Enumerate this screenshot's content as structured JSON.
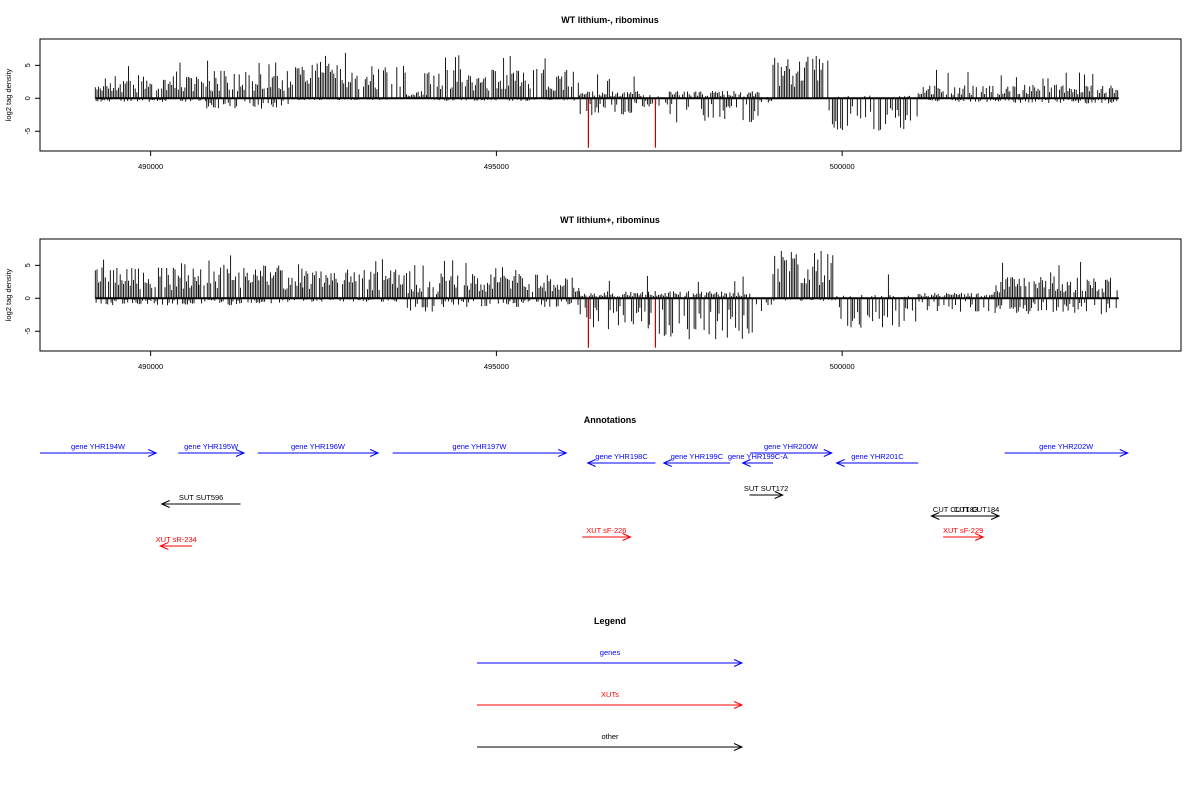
{
  "colors": {
    "gene": "#0000ff",
    "xut": "#ff0000",
    "other": "#000000",
    "spike": "#cc0000",
    "bars": "#000000"
  },
  "chart_data": [
    {
      "type": "bar",
      "title": "WT lithium-, ribominus",
      "ylabel": "log2 tag density",
      "xlim": [
        488400,
        504900
      ],
      "ylim": [
        -8,
        9
      ],
      "x_ticks": [
        490000,
        495000,
        500000
      ],
      "x_tick_labels": [
        "490000",
        "495000",
        "500000"
      ],
      "y_ticks": [
        5,
        0,
        -5
      ],
      "y_tick_labels": [
        "5",
        "0",
        "-5"
      ],
      "baseline_range": [
        489200,
        504000
      ],
      "segments": [
        {
          "range": [
            489200,
            490800
          ],
          "mean": 2.5,
          "neg": -0.4
        },
        {
          "range": [
            490800,
            492000
          ],
          "mean": 3.0,
          "neg": -1.2
        },
        {
          "range": [
            492000,
            493700
          ],
          "mean": 3.8,
          "neg": -0.2
        },
        {
          "range": [
            493700,
            494000
          ],
          "mean": 0.8,
          "neg": 0.0
        },
        {
          "range": [
            494000,
            496200
          ],
          "mean": 3.3,
          "neg": -0.3
        },
        {
          "range": [
            496200,
            497100
          ],
          "mean": 0.8,
          "neg": -2.0
        },
        {
          "range": [
            497100,
            497500
          ],
          "mean": 0.4,
          "neg": -1.0
        },
        {
          "range": [
            497500,
            498800
          ],
          "mean": 0.8,
          "neg": -2.8
        },
        {
          "range": [
            498800,
            499000
          ],
          "mean": 0.2,
          "neg": -0.5
        },
        {
          "range": [
            499000,
            499800
          ],
          "mean": 4.8,
          "neg": 0.0
        },
        {
          "range": [
            499800,
            501100
          ],
          "mean": 0.3,
          "neg": -3.8
        },
        {
          "range": [
            501100,
            502400
          ],
          "mean": 1.4,
          "neg": -0.4
        },
        {
          "range": [
            502400,
            504000
          ],
          "mean": 1.5,
          "neg": -0.6
        }
      ],
      "spikes": [
        {
          "x": 496330,
          "y": -7.5
        },
        {
          "x": 497300,
          "y": -7.5
        }
      ]
    },
    {
      "type": "bar",
      "title": "WT lithium+, ribominus",
      "ylabel": "log2 tag density",
      "xlim": [
        488400,
        504900
      ],
      "ylim": [
        -8,
        9
      ],
      "x_ticks": [
        490000,
        495000,
        500000
      ],
      "x_tick_labels": [
        "490000",
        "495000",
        "500000"
      ],
      "y_ticks": [
        5,
        0,
        -5
      ],
      "y_tick_labels": [
        "5",
        "0",
        "-5"
      ],
      "baseline_range": [
        489200,
        504000
      ],
      "segments": [
        {
          "range": [
            489200,
            490700
          ],
          "mean": 3.4,
          "neg": -0.8
        },
        {
          "range": [
            490700,
            492200
          ],
          "mean": 3.7,
          "neg": -0.8
        },
        {
          "range": [
            492200,
            493700
          ],
          "mean": 3.2,
          "neg": -0.4
        },
        {
          "range": [
            493700,
            494200
          ],
          "mean": 1.8,
          "neg": -1.5
        },
        {
          "range": [
            494200,
            496200
          ],
          "mean": 2.7,
          "neg": -1.0
        },
        {
          "range": [
            496200,
            497200
          ],
          "mean": 0.8,
          "neg": -3.5
        },
        {
          "range": [
            497200,
            498700
          ],
          "mean": 0.8,
          "neg": -4.6
        },
        {
          "range": [
            498700,
            499000
          ],
          "mean": 0.5,
          "neg": -1.5
        },
        {
          "range": [
            499000,
            499900
          ],
          "mean": 5.2,
          "neg": -0.3
        },
        {
          "range": [
            499900,
            501100
          ],
          "mean": 0.4,
          "neg": -3.4
        },
        {
          "range": [
            501100,
            502200
          ],
          "mean": 0.6,
          "neg": -1.5
        },
        {
          "range": [
            502200,
            504000
          ],
          "mean": 2.4,
          "neg": -1.8
        }
      ],
      "spikes": [
        {
          "x": 496330,
          "y": -7.5
        },
        {
          "x": 497300,
          "y": -7.5
        }
      ]
    }
  ],
  "annotations": {
    "title": "Annotations",
    "features": [
      {
        "label": "gene YHR194W",
        "type": "gene",
        "dir": "+",
        "start": 488400,
        "end": 490080,
        "row": 1
      },
      {
        "label": "gene YHR195W",
        "type": "gene",
        "dir": "+",
        "start": 490400,
        "end": 491350,
        "row": 1
      },
      {
        "label": "gene YHR196W",
        "type": "gene",
        "dir": "+",
        "start": 491550,
        "end": 493290,
        "row": 1
      },
      {
        "label": "gene YHR197W",
        "type": "gene",
        "dir": "+",
        "start": 493500,
        "end": 496010,
        "row": 1
      },
      {
        "label": "gene YHR198C",
        "type": "gene",
        "dir": "-",
        "start": 496320,
        "end": 497300,
        "row": 2
      },
      {
        "label": "gene YHR199C",
        "type": "gene",
        "dir": "-",
        "start": 497420,
        "end": 498380,
        "row": 2
      },
      {
        "label": "gene YHR199C-A",
        "type": "gene",
        "dir": "-",
        "start": 498560,
        "end": 499000,
        "row": 2
      },
      {
        "label": "gene YHR200W",
        "type": "gene",
        "dir": "+",
        "start": 498670,
        "end": 499850,
        "row": 1
      },
      {
        "label": "gene YHR201C",
        "type": "gene",
        "dir": "-",
        "start": 499920,
        "end": 501100,
        "row": 2
      },
      {
        "label": "gene YHR202W",
        "type": "gene",
        "dir": "+",
        "start": 502350,
        "end": 504130,
        "row": 1
      },
      {
        "label": "SUT SUT596",
        "type": "other",
        "dir": "-",
        "start": 490160,
        "end": 491300,
        "row": 3
      },
      {
        "label": "SUT SUT172",
        "type": "other",
        "dir": "+",
        "start": 498660,
        "end": 499140,
        "row": 4
      },
      {
        "label": "CUT CUT183",
        "type": "other",
        "dir": "-",
        "start": 501290,
        "end": 501990,
        "row": 5
      },
      {
        "label": "CUT CUT184",
        "type": "other",
        "dir": "+",
        "start": 501620,
        "end": 502270,
        "row": 5
      },
      {
        "label": "XUT sR-234",
        "type": "xut",
        "dir": "-",
        "start": 490140,
        "end": 490600,
        "row": 6
      },
      {
        "label": "XUT sF-226",
        "type": "xut",
        "dir": "+",
        "start": 496240,
        "end": 496940,
        "row": 7
      },
      {
        "label": "XUT sF-229",
        "type": "xut",
        "dir": "+",
        "start": 501460,
        "end": 502040,
        "row": 7
      }
    ]
  },
  "legend": {
    "title": "Legend",
    "items": [
      {
        "label": "genes",
        "type": "gene"
      },
      {
        "label": "XUTs",
        "type": "xut"
      },
      {
        "label": "other",
        "type": "other"
      }
    ]
  }
}
